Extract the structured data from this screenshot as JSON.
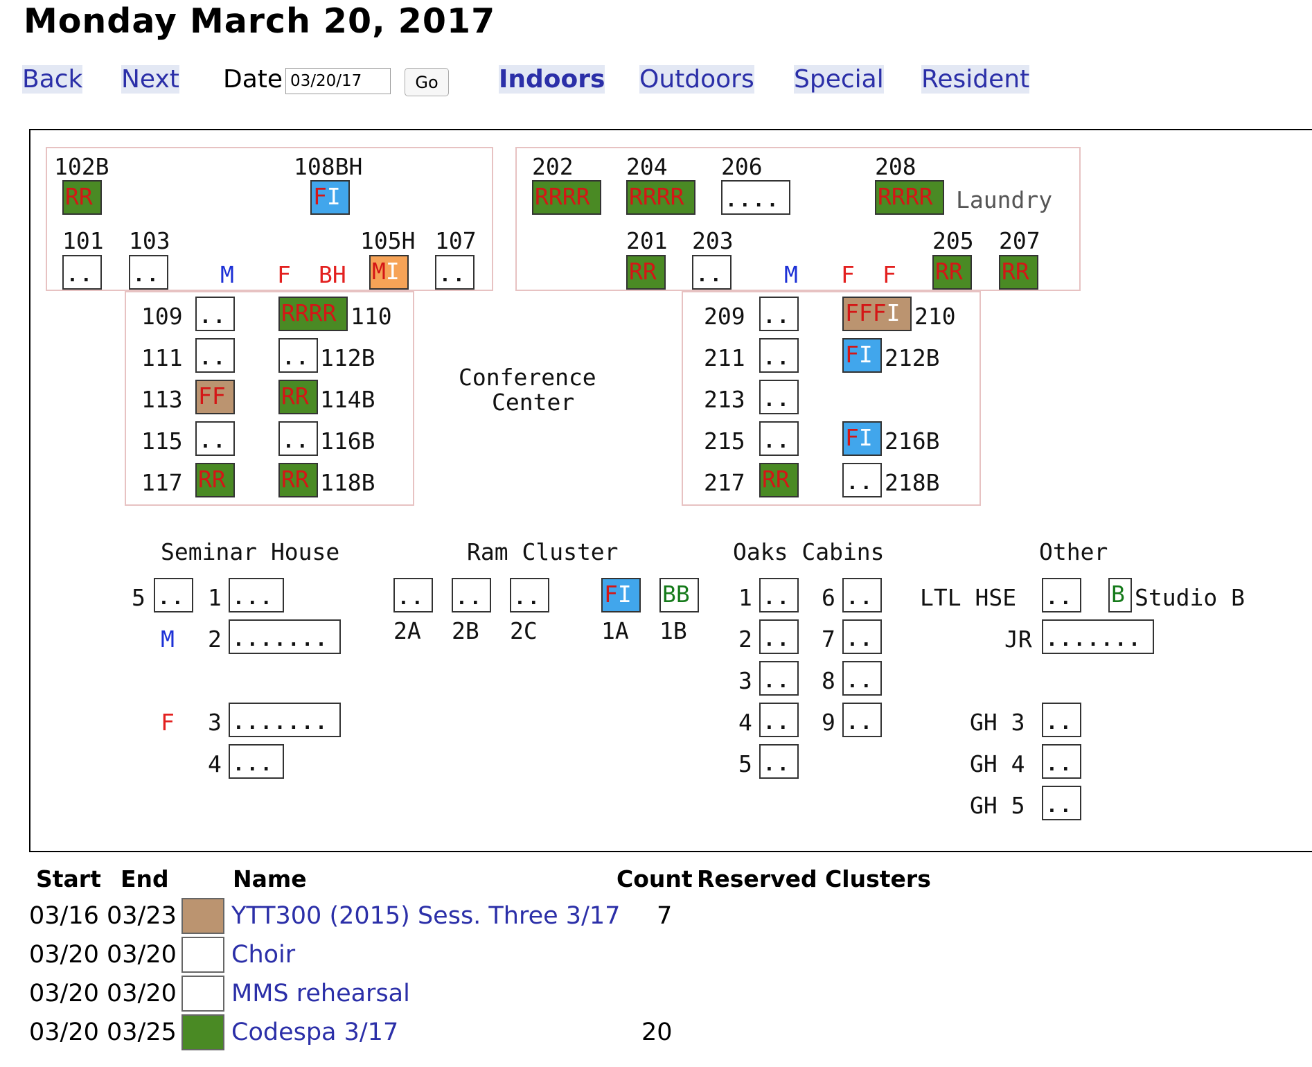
{
  "title": "Monday March 20, 2017",
  "nav": {
    "back": "Back",
    "next": "Next",
    "date_label": "Date",
    "date_value": "03/20/17",
    "go": "Go",
    "indoors": "Indoors",
    "outdoors": "Outdoors",
    "special": "Special",
    "resident": "Resident"
  },
  "colors": {
    "green": "#4a8a24",
    "blue": "#41a6ec",
    "orange": "#f6a357",
    "tan": "#bb9470",
    "link": "#2b2fa8",
    "male": "#1d31d6",
    "female": "#e3201f",
    "group_border": "#e7c2c2"
  },
  "map": {
    "l102b": "102B",
    "l108bh": "108BH",
    "l101": "101",
    "l103": "103",
    "l105h": "105H",
    "l107": "107",
    "c102b": "RR",
    "c108bh_f": "F",
    "c108bh_i": "I",
    "c105h_m": "M",
    "c105h_i": "I",
    "m1": "M",
    "f1": "F",
    "bh1": "BH",
    "l202": "202",
    "l204": "204",
    "l206": "206",
    "l208": "208",
    "laundry": "Laundry",
    "l201": "201",
    "l203": "203",
    "l205": "205",
    "l207": "207",
    "c202": "RRRR",
    "c204": "RRRR",
    "c208": "RRRR",
    "c201": "RR",
    "c205": "RR",
    "c207": "RR",
    "m2": "M",
    "f2a": "F",
    "f2b": "F",
    "l109": "109",
    "l111": "111",
    "l113": "113",
    "l115": "115",
    "l117": "117",
    "l110": "110",
    "l112b": "112B",
    "l114b": "114B",
    "l116b": "116B",
    "l118b": "118B",
    "c110": "RRRR",
    "c113": "FF",
    "c114b": "RR",
    "c117": "RR",
    "c118b": "RR",
    "conf1": "Conference",
    "conf2": "Center",
    "l209": "209",
    "l211": "211",
    "l213": "213",
    "l215": "215",
    "l217": "217",
    "l210": "210",
    "l212b": "212B",
    "l216b": "216B",
    "l218b": "218B",
    "c210_f": "FFF",
    "c210_i": "I",
    "c212b_f": "F",
    "c212b_i": "I",
    "c216b_f": "F",
    "c216b_i": "I",
    "c217": "RR",
    "seminar": "Seminar House",
    "ram": "Ram Cluster",
    "oaks": "Oaks Cabins",
    "other": "Other",
    "s5": "5",
    "s1": "1",
    "s2": "2",
    "s3": "3",
    "s4": "4",
    "sm": "M",
    "sf": "F",
    "r2a": "2A",
    "r2b": "2B",
    "r2c": "2C",
    "r1a": "1A",
    "r1b": "1B",
    "c1a_f": "F",
    "c1a_i": "I",
    "c1b": "BB",
    "o1": "1",
    "o2": "2",
    "o3": "3",
    "o4": "4",
    "o5": "5",
    "o6": "6",
    "o7": "7",
    "o8": "8",
    "o9": "9",
    "ltl": "LTL HSE",
    "studio_b_cell": "B",
    "studio_b": "Studio B",
    "jr": "JR",
    "gh3": "GH 3",
    "gh4": "GH 4",
    "gh5": "GH 5"
  },
  "table": {
    "headers": {
      "start": "Start",
      "end": "End",
      "name": "Name",
      "count": "Count",
      "clusters": "Reserved Clusters"
    },
    "rows": [
      {
        "start": "03/16",
        "end": "03/23",
        "color": "#bb9470",
        "name": "YTT300 (2015) Sess. Three 3/17",
        "count": "7"
      },
      {
        "start": "03/20",
        "end": "03/20",
        "color": "#ffffff",
        "name": "Choir",
        "count": ""
      },
      {
        "start": "03/20",
        "end": "03/20",
        "color": "#ffffff",
        "name": "MMS rehearsal",
        "count": ""
      },
      {
        "start": "03/20",
        "end": "03/25",
        "color": "#4a8a24",
        "name": "Codespa 3/17",
        "count": "20"
      }
    ]
  }
}
